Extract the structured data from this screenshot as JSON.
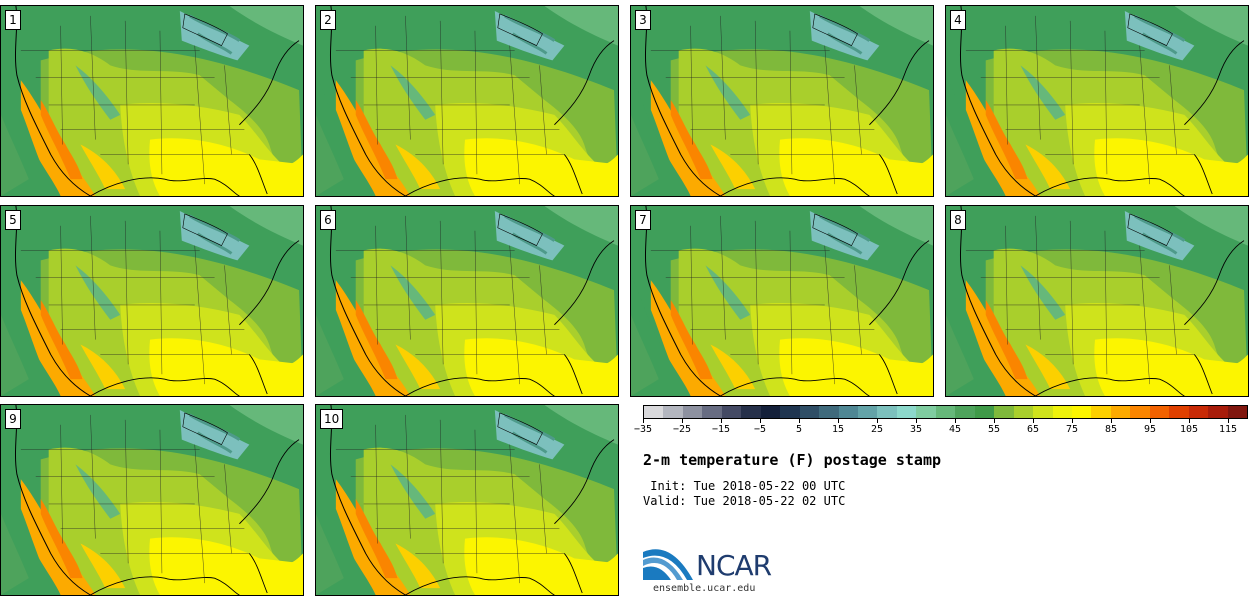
{
  "stamps": [
    {
      "label": "1"
    },
    {
      "label": "2"
    },
    {
      "label": "3"
    },
    {
      "label": "4"
    },
    {
      "label": "5"
    },
    {
      "label": "6"
    },
    {
      "label": "7"
    },
    {
      "label": "8"
    },
    {
      "label": "9"
    },
    {
      "label": "10"
    }
  ],
  "colorbar": {
    "colors": [
      "#d9d9dc",
      "#b3b6bf",
      "#8d91a0",
      "#676c82",
      "#444a64",
      "#26304a",
      "#14203a",
      "#1f3550",
      "#2f4e66",
      "#3f6a7c",
      "#4f8794",
      "#63a3a8",
      "#7cc0bd",
      "#8cd8cb",
      "#7fcca0",
      "#66b87a",
      "#4ea35c",
      "#3f9a48",
      "#7fb93b",
      "#a9cf2c",
      "#cfe31c",
      "#eef20c",
      "#fcf500",
      "#fcd000",
      "#fcaa00",
      "#fa8500",
      "#f26200",
      "#e04000",
      "#c82a06",
      "#a81c0a",
      "#80160e"
    ],
    "tick_values": [
      "−35",
      "−25",
      "−15",
      "−5",
      "5",
      "15",
      "25",
      "35",
      "45",
      "55",
      "65",
      "75",
      "85",
      "95",
      "105",
      "115"
    ],
    "unit": "F"
  },
  "title": "2-m temperature (F) postage stamp",
  "init": " Init: Tue 2018-05-22 00 UTC",
  "valid": "Valid: Tue 2018-05-22 02 UTC",
  "logo": {
    "text": "NCAR",
    "brand_color": "#1f3c6e",
    "swoosh_color": "#1a7ac0"
  },
  "website": "ensemble.ucar.edu"
}
